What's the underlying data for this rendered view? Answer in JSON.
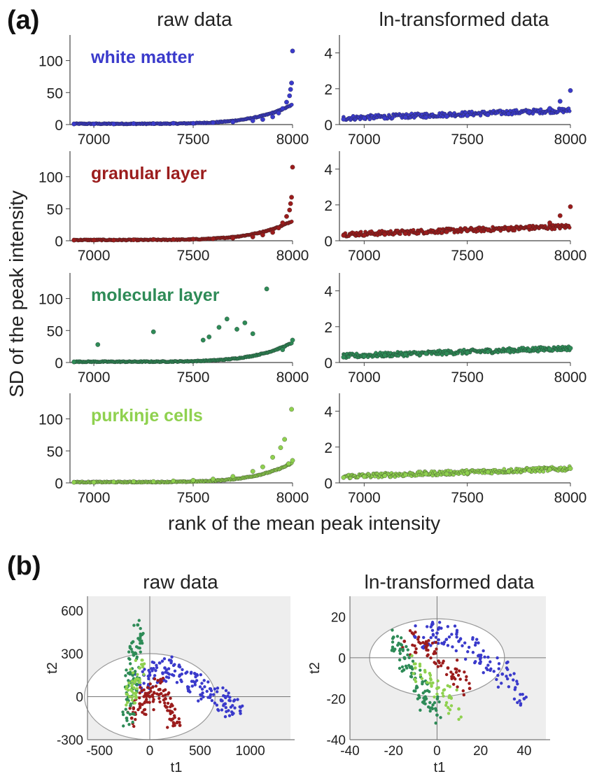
{
  "figure": {
    "panel_a_label": "(a)",
    "panel_b_label": "(b)",
    "col_left_title": "raw data",
    "col_right_title": "ln-transformed data",
    "y_axis_label": "SD of the peak intensity",
    "x_axis_label": "rank of the mean peak intensity",
    "pca_left_title": "raw data",
    "pca_right_title": "ln-transformed data"
  },
  "chart_data": [
    {
      "type": "scatter",
      "panel": "a",
      "row": 0,
      "column": "raw data",
      "label": "white matter",
      "color": "#3a3acb",
      "xlim": [
        6880,
        8000
      ],
      "ylim": [
        0,
        140
      ],
      "xticks": [
        7000,
        7500,
        8000
      ],
      "yticks": [
        0,
        50,
        100
      ],
      "x": [
        6900,
        7000,
        7100,
        7200,
        7300,
        7400,
        7500,
        7600,
        7700,
        7800,
        7850,
        7900,
        7930,
        7950,
        7970,
        7985,
        7990,
        7995,
        8000
      ],
      "y": [
        1,
        1,
        1,
        1.5,
        1.5,
        2,
        2,
        3,
        4,
        6,
        8,
        12,
        18,
        25,
        35,
        45,
        55,
        65,
        115
      ]
    },
    {
      "type": "scatter",
      "panel": "a",
      "row": 0,
      "column": "ln-transformed data",
      "label": "white matter",
      "color": "#3a3acb",
      "xlim": [
        6880,
        8000
      ],
      "ylim": [
        0,
        5
      ],
      "xticks": [
        7000,
        7500,
        8000
      ],
      "yticks": [
        0,
        2,
        4
      ],
      "x": [
        6900,
        7000,
        7100,
        7200,
        7300,
        7400,
        7500,
        7600,
        7700,
        7800,
        7900,
        7950,
        8000
      ],
      "y": [
        0.3,
        0.35,
        0.35,
        0.4,
        0.4,
        0.45,
        0.5,
        0.55,
        0.6,
        0.7,
        0.9,
        1.3,
        1.9
      ]
    },
    {
      "type": "scatter",
      "panel": "a",
      "row": 1,
      "column": "raw data",
      "label": "granular layer",
      "color": "#9b1c1c",
      "xlim": [
        6880,
        8000
      ],
      "ylim": [
        0,
        140
      ],
      "xticks": [
        7000,
        7500,
        8000
      ],
      "yticks": [
        0,
        50,
        100
      ],
      "x": [
        6900,
        7000,
        7100,
        7200,
        7300,
        7400,
        7500,
        7600,
        7700,
        7800,
        7850,
        7900,
        7930,
        7950,
        7970,
        7985,
        7990,
        7995,
        8000
      ],
      "y": [
        1,
        1,
        1,
        1.5,
        2,
        2,
        2.5,
        3,
        4,
        6,
        9,
        13,
        20,
        28,
        38,
        48,
        58,
        68,
        115
      ]
    },
    {
      "type": "scatter",
      "panel": "a",
      "row": 1,
      "column": "ln-transformed data",
      "label": "granular layer",
      "color": "#9b1c1c",
      "xlim": [
        6880,
        8000
      ],
      "ylim": [
        0,
        5
      ],
      "xticks": [
        7000,
        7500,
        8000
      ],
      "yticks": [
        0,
        2,
        4
      ],
      "x": [
        6900,
        7000,
        7100,
        7200,
        7300,
        7400,
        7500,
        7600,
        7700,
        7800,
        7900,
        7950,
        8000
      ],
      "y": [
        0.3,
        0.3,
        0.35,
        0.4,
        0.45,
        0.5,
        0.55,
        0.6,
        0.7,
        0.8,
        1.0,
        1.4,
        1.9
      ]
    },
    {
      "type": "scatter",
      "panel": "a",
      "row": 2,
      "column": "raw data",
      "label": "molecular layer",
      "color": "#2e8b57",
      "xlim": [
        6880,
        8000
      ],
      "ylim": [
        0,
        140
      ],
      "xticks": [
        7000,
        7500,
        8000
      ],
      "yticks": [
        0,
        50,
        100
      ],
      "x": [
        6900,
        7020,
        7300,
        7550,
        7580,
        7630,
        7670,
        7720,
        7760,
        7800,
        7870,
        7950,
        8000
      ],
      "y": [
        1,
        28,
        48,
        35,
        40,
        55,
        68,
        52,
        62,
        45,
        115,
        20,
        35
      ]
    },
    {
      "type": "scatter",
      "panel": "a",
      "row": 2,
      "column": "ln-transformed data",
      "label": "molecular layer",
      "color": "#2e8b57",
      "xlim": [
        6880,
        8000
      ],
      "ylim": [
        0,
        5
      ],
      "xticks": [
        7000,
        7500,
        8000
      ],
      "yticks": [
        0,
        2,
        4
      ],
      "x": [
        6900,
        7000,
        7100,
        7200,
        7300,
        7400,
        7500,
        7600,
        7700,
        7800,
        7900,
        8000
      ],
      "y": [
        0.3,
        0.35,
        0.4,
        0.45,
        0.5,
        0.5,
        0.55,
        0.6,
        0.65,
        0.7,
        0.75,
        0.8
      ]
    },
    {
      "type": "scatter",
      "panel": "a",
      "row": 3,
      "column": "raw data",
      "label": "purkinje cells",
      "color": "#8fd14f",
      "xlim": [
        6880,
        8000
      ],
      "ylim": [
        0,
        140
      ],
      "xticks": [
        7000,
        7500,
        8000
      ],
      "yticks": [
        0,
        50,
        100
      ],
      "x": [
        6900,
        7000,
        7100,
        7200,
        7300,
        7400,
        7500,
        7600,
        7700,
        7800,
        7850,
        7900,
        7940,
        7960,
        7980,
        7995,
        8000
      ],
      "y": [
        1,
        1,
        1.5,
        2,
        2,
        3,
        4,
        6,
        10,
        18,
        25,
        40,
        55,
        68,
        30,
        115,
        35
      ]
    },
    {
      "type": "scatter",
      "panel": "a",
      "row": 3,
      "column": "ln-transformed data",
      "label": "purkinje cells",
      "color": "#8fd14f",
      "xlim": [
        6880,
        8000
      ],
      "ylim": [
        0,
        5
      ],
      "xticks": [
        7000,
        7500,
        8000
      ],
      "yticks": [
        0,
        2,
        4
      ],
      "x": [
        6900,
        7000,
        7100,
        7200,
        7300,
        7400,
        7500,
        7600,
        7700,
        7800,
        7900,
        8000
      ],
      "y": [
        0.3,
        0.35,
        0.4,
        0.45,
        0.5,
        0.5,
        0.55,
        0.6,
        0.65,
        0.7,
        0.75,
        0.8
      ]
    },
    {
      "type": "scatter",
      "panel": "b",
      "column": "raw data",
      "xlabel": "t1",
      "ylabel": "t2",
      "xlim": [
        -620,
        1400
      ],
      "ylim": [
        -300,
        700
      ],
      "xticks": [
        -500,
        0,
        500,
        1000
      ],
      "yticks": [
        -300,
        0,
        300,
        600
      ],
      "ellipse": {
        "cx": 0,
        "cy": 0,
        "rx": 650,
        "ry": 300
      },
      "series": [
        {
          "color": "#3a3acb",
          "x": [
            -150,
            0,
            150,
            300,
            450,
            600,
            750,
            900
          ],
          "y": [
            100,
            150,
            200,
            150,
            100,
            0,
            -50,
            -100
          ]
        },
        {
          "color": "#9b1c1c",
          "x": [
            -180,
            -100,
            0,
            100,
            200,
            300
          ],
          "y": [
            -150,
            -50,
            0,
            50,
            -100,
            -200
          ]
        },
        {
          "color": "#2e8b57",
          "x": [
            -230,
            -200,
            -170,
            -140,
            -120
          ],
          "y": [
            -150,
            0,
            150,
            300,
            500
          ]
        },
        {
          "color": "#8fd14f",
          "x": [
            -200,
            -150,
            -100
          ],
          "y": [
            0,
            100,
            200
          ]
        }
      ]
    },
    {
      "type": "scatter",
      "panel": "b",
      "column": "ln-transformed data",
      "xlabel": "t1",
      "ylabel": "t2",
      "xlim": [
        -40,
        50
      ],
      "ylim": [
        -40,
        30
      ],
      "xticks": [
        -40,
        -20,
        0,
        20,
        40
      ],
      "yticks": [
        -40,
        -20,
        0,
        20
      ],
      "ellipse": {
        "cx": 0,
        "cy": 0,
        "rx": 31,
        "ry": 19
      },
      "series": [
        {
          "color": "#3a3acb",
          "x": [
            -10,
            0,
            10,
            20,
            30,
            40
          ],
          "y": [
            10,
            12,
            8,
            0,
            -8,
            -20
          ]
        },
        {
          "color": "#9b1c1c",
          "x": [
            -15,
            -5,
            5,
            15
          ],
          "y": [
            8,
            5,
            -5,
            -15
          ]
        },
        {
          "color": "#2e8b57",
          "x": [
            -20,
            -15,
            -10,
            -5,
            0
          ],
          "y": [
            10,
            0,
            -10,
            -20,
            -28
          ]
        },
        {
          "color": "#8fd14f",
          "x": [
            -10,
            0,
            10
          ],
          "y": [
            -5,
            -15,
            -25
          ]
        }
      ]
    }
  ]
}
